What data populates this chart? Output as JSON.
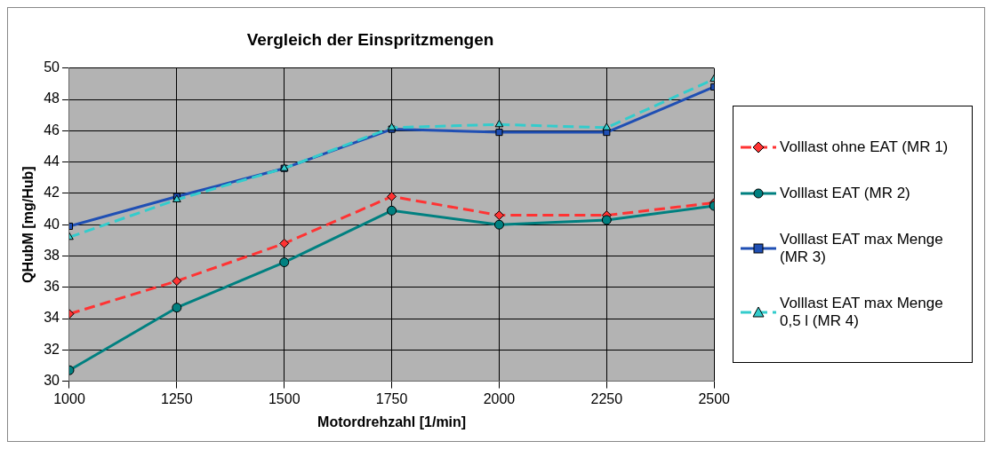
{
  "chart_data": {
    "type": "line",
    "title": "Vergleich der Einspritzmengen",
    "xlabel": "Motordrehzahl [1/min]",
    "ylabel": "QHubM [mg/Hub]",
    "x": [
      1000,
      1250,
      1500,
      1750,
      2000,
      2250,
      2500
    ],
    "xlim": [
      1000,
      2500
    ],
    "xticks": [
      1000,
      1250,
      1500,
      1750,
      2000,
      2250,
      2500
    ],
    "ylim": [
      30,
      50
    ],
    "yticks": [
      30,
      32,
      34,
      36,
      38,
      40,
      42,
      44,
      46,
      48,
      50
    ],
    "grid": true,
    "legend": "right",
    "series": [
      {
        "name": "Volllast ohne EAT (MR 1)",
        "color": "#ff3333",
        "line_style": "dashed",
        "marker": "diamond",
        "values": [
          34.3,
          36.4,
          38.8,
          41.8,
          40.6,
          40.6,
          41.4
        ]
      },
      {
        "name": "Volllast EAT (MR 2)",
        "color": "#008080",
        "line_style": "solid",
        "marker": "circle",
        "values": [
          30.7,
          34.7,
          37.6,
          40.9,
          40.0,
          40.3,
          41.2
        ]
      },
      {
        "name": "Volllast EAT max Menge (MR 3)",
        "color": "#1f4fb4",
        "line_style": "solid",
        "marker": "square",
        "values": [
          39.9,
          41.8,
          43.6,
          46.1,
          45.9,
          45.9,
          48.8
        ]
      },
      {
        "name": "Volllast EAT max Menge 0,5 l (MR 4)",
        "color": "#33cccc",
        "line_style": "dashed",
        "marker": "triangle",
        "values": [
          39.2,
          41.6,
          43.6,
          46.2,
          46.4,
          46.2,
          49.3
        ]
      }
    ]
  }
}
